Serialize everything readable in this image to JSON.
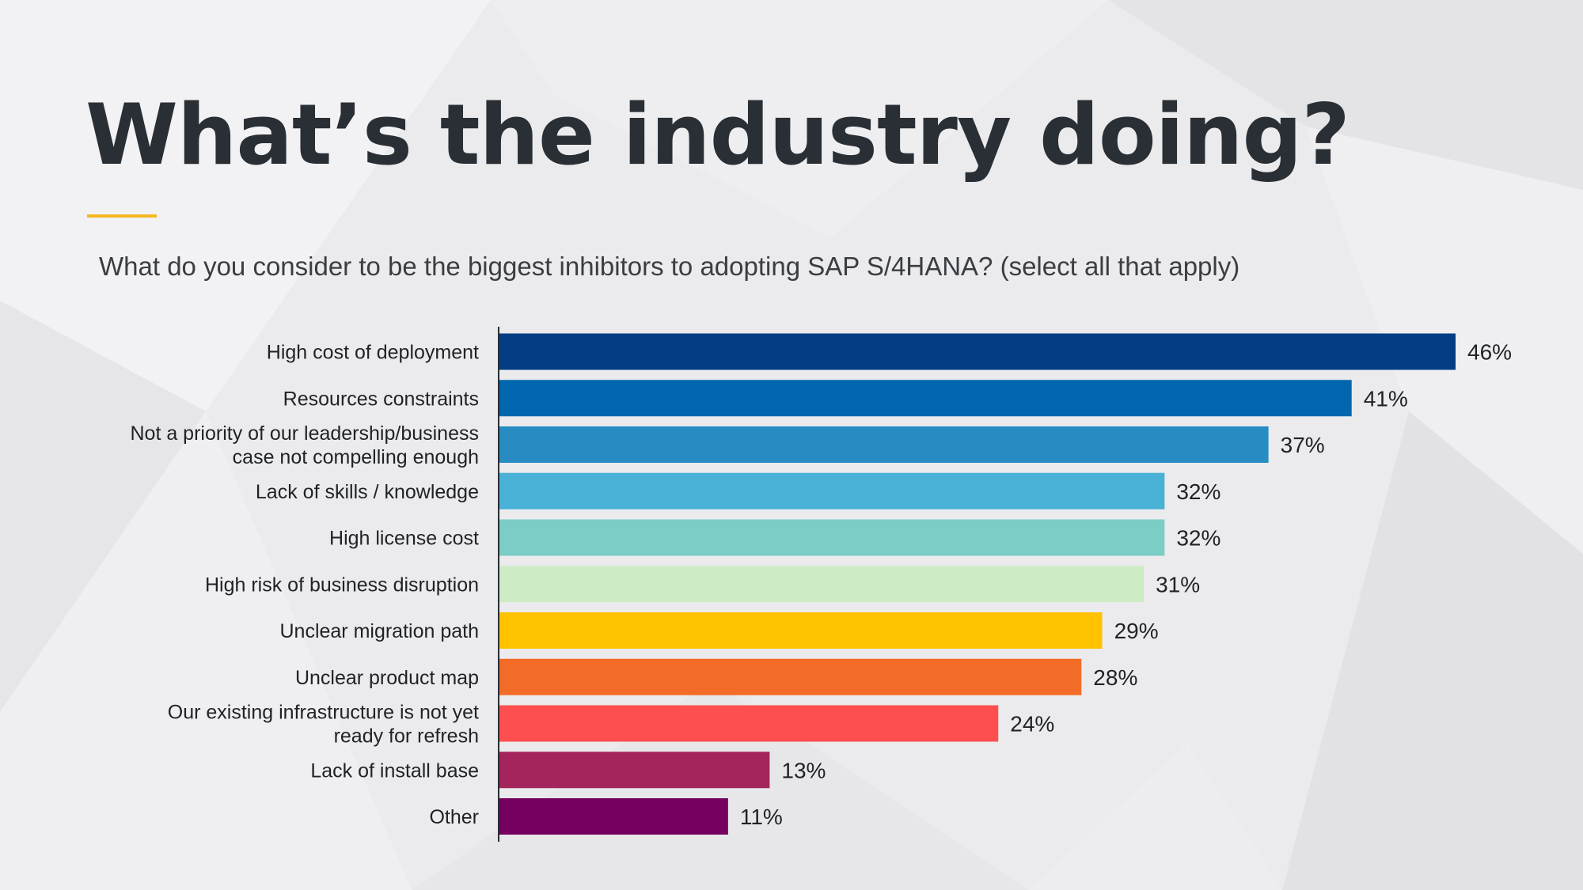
{
  "title": "What’s the industry doing?",
  "subtitle": "What do you consider to be the biggest inhibitors to adopting SAP S/4HANA? (select all that apply)",
  "colors": {
    "title": "#2a2e35",
    "accent": "#f5b821",
    "axis": "#2a2e35"
  },
  "chart_data": {
    "type": "bar",
    "orientation": "horizontal",
    "title": "What do you consider to be the biggest inhibitors to adopting SAP S/4HANA? (select all that apply)",
    "xlabel": "",
    "ylabel": "",
    "xlim": [
      0,
      46
    ],
    "grid": false,
    "unit": "%",
    "categories": [
      [
        "High cost of deployment"
      ],
      [
        "Resources constraints"
      ],
      [
        "Not a priority of our leadership/business",
        "case not compelling enough"
      ],
      [
        "Lack of skills / knowledge"
      ],
      [
        "High license cost"
      ],
      [
        "High risk of business disruption"
      ],
      [
        "Unclear migration path"
      ],
      [
        "Unclear product map"
      ],
      [
        "Our existing infrastructure is not yet",
        "ready for refresh"
      ],
      [
        "Lack of install base"
      ],
      [
        "Other"
      ]
    ],
    "values": [
      46,
      41,
      37,
      32,
      32,
      31,
      29,
      28,
      24,
      13,
      11
    ],
    "value_labels": [
      "46%",
      "41%",
      "37%",
      "32%",
      "32%",
      "31%",
      "29%",
      "28%",
      "24%",
      "13%",
      "11%"
    ],
    "bar_colors": [
      "#033e84",
      "#0066ad",
      "#288cc3",
      "#49b1d6",
      "#7bcdc6",
      "#cdebc5",
      "#ffc200",
      "#f26c27",
      "#fd4f4f",
      "#a3255c",
      "#75005f"
    ]
  }
}
